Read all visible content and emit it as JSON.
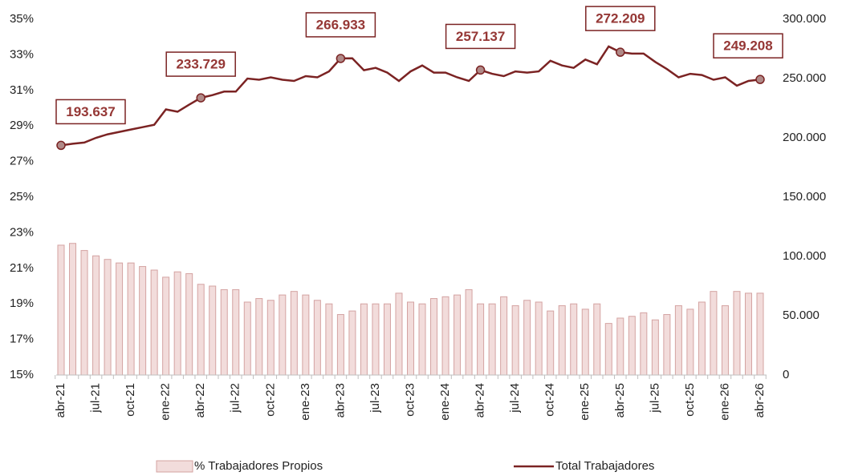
{
  "chart_data": {
    "type": "bar",
    "categories": [
      "abr-21",
      null,
      null,
      "jul-21",
      null,
      null,
      "oct-21",
      null,
      null,
      "ene-22",
      null,
      null,
      "abr-22",
      null,
      null,
      "jul-22",
      null,
      null,
      "oct-22",
      null,
      null,
      "ene-23",
      null,
      null,
      "abr-23",
      null,
      null,
      "jul-23",
      null,
      null,
      "oct-23",
      null,
      null,
      "ene-24",
      null,
      null,
      "abr-24",
      null,
      null,
      "jul-24",
      null,
      null,
      "oct-24",
      null,
      null,
      "ene-25",
      null,
      null,
      "abr-25",
      null,
      null,
      "jul-25",
      null,
      null,
      "oct-25",
      null,
      null,
      "ene-26",
      null,
      null,
      "abr-26"
    ],
    "series": [
      {
        "name": "% Trabajadores Propios",
        "type": "bar",
        "color": "#f2dcdb",
        "values": [
          22.3,
          22.4,
          22.0,
          21.7,
          21.5,
          21.3,
          21.3,
          21.1,
          20.9,
          20.5,
          20.8,
          20.7,
          20.1,
          20.0,
          19.8,
          19.8,
          19.1,
          19.3,
          19.2,
          19.5,
          19.7,
          19.5,
          19.2,
          19.0,
          18.4,
          18.6,
          19.0,
          19.0,
          19.0,
          19.6,
          19.1,
          19.0,
          19.3,
          19.4,
          19.5,
          19.8,
          19.0,
          19.0,
          19.4,
          18.9,
          19.2,
          19.1,
          18.6,
          18.9,
          19.0,
          18.7,
          19.0,
          17.9,
          18.2,
          18.3,
          18.5,
          18.1,
          18.4,
          18.9,
          18.7,
          19.1,
          19.7,
          18.9,
          19.7,
          19.6,
          19.6
        ]
      },
      {
        "name": "Total Trabajadores",
        "type": "line",
        "axis": "y2",
        "color": "#7b2323",
        "values": [
          193637,
          195000,
          196000,
          200000,
          203000,
          205000,
          207000,
          209000,
          211000,
          224000,
          222000,
          228000,
          233729,
          236000,
          239000,
          239000,
          250000,
          249000,
          251000,
          249000,
          248000,
          252000,
          251000,
          256000,
          266933,
          267000,
          257000,
          259000,
          255000,
          248000,
          256000,
          261000,
          255000,
          255000,
          251000,
          248000,
          257137,
          254000,
          252000,
          256000,
          255000,
          256000,
          265000,
          261000,
          259000,
          266000,
          262000,
          277000,
          272209,
          271000,
          271000,
          264000,
          258000,
          251000,
          254000,
          253000,
          249000,
          251000,
          244000,
          248000,
          249208
        ],
        "value_labels": [
          "193.637",
          null,
          null,
          null,
          null,
          null,
          null,
          null,
          null,
          null,
          null,
          null,
          "233.729",
          null,
          null,
          null,
          null,
          null,
          null,
          null,
          null,
          null,
          null,
          null,
          "266.933",
          null,
          null,
          null,
          null,
          null,
          null,
          null,
          null,
          null,
          null,
          null,
          "257.137",
          null,
          null,
          null,
          null,
          null,
          null,
          null,
          null,
          null,
          null,
          null,
          "272.209",
          null,
          null,
          null,
          null,
          null,
          null,
          null,
          null,
          null,
          null,
          null,
          "249.208"
        ]
      }
    ],
    "ylim": [
      15,
      35
    ],
    "yticks": [
      {
        "value": 15,
        "label": "15%"
      },
      {
        "value": 17,
        "label": "17%"
      },
      {
        "value": 19,
        "label": "19%"
      },
      {
        "value": 21,
        "label": "21%"
      },
      {
        "value": 23,
        "label": "23%"
      },
      {
        "value": 25,
        "label": "25%"
      },
      {
        "value": 27,
        "label": "27%"
      },
      {
        "value": 29,
        "label": "29%"
      },
      {
        "value": 31,
        "label": "31%"
      },
      {
        "value": 33,
        "label": "33%"
      },
      {
        "value": 35,
        "label": "35%"
      }
    ],
    "y2lim": [
      0,
      300000
    ],
    "y2ticks": [
      0,
      {
        "value": 50000,
        "label": "50.000"
      },
      {
        "value": 100000,
        "label": "100.000"
      },
      {
        "value": 150000,
        "label": "150.000"
      },
      {
        "value": 200000,
        "label": "200.000"
      },
      {
        "value": 250000,
        "label": "250.000"
      },
      {
        "value": 300000,
        "label": "300.000"
      }
    ],
    "legend": "bottom"
  }
}
